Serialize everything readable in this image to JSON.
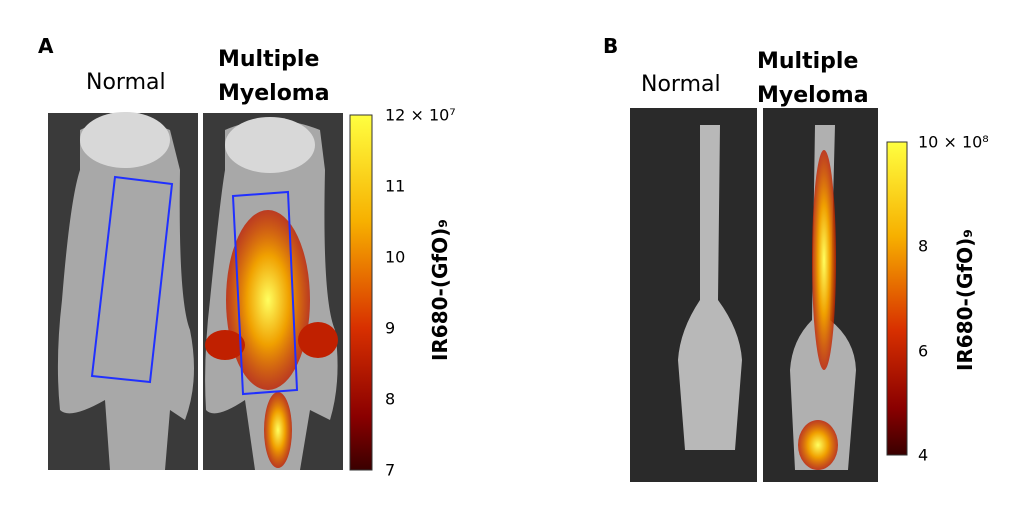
{
  "panels": [
    {
      "label": "A",
      "images": [
        {
          "caption": "Normal"
        },
        {
          "caption": "Multiple Myeloma"
        }
      ],
      "colorbar": {
        "title": "IR680-(GfO)₉",
        "ticks": [
          "12 × 10⁷",
          "11",
          "10",
          "9",
          "8",
          "7"
        ]
      }
    },
    {
      "label": "B",
      "images": [
        {
          "caption": "Normal"
        },
        {
          "caption": "Multiple Myeloma"
        }
      ],
      "colorbar": {
        "title": "IR680-(GfO)₉",
        "ticks": [
          "10 × 10⁸",
          "8",
          "6",
          "4"
        ]
      }
    }
  ]
}
